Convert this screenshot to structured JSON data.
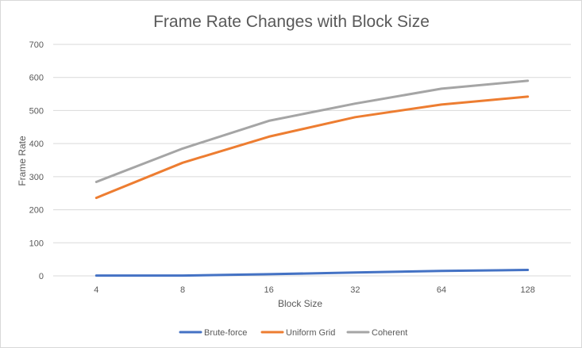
{
  "chart_data": {
    "type": "line",
    "title": "Frame Rate Changes with Block Size",
    "xlabel": "Block Size",
    "ylabel": "Frame Rate",
    "categories": [
      "4",
      "8",
      "16",
      "32",
      "64",
      "128"
    ],
    "ylim": [
      0,
      700
    ],
    "yticks": [
      "0",
      "100",
      "200",
      "300",
      "400",
      "500",
      "600",
      "700"
    ],
    "grid": true,
    "legend_position": "bottom",
    "series": [
      {
        "name": "Brute-force",
        "color": "#4472c4",
        "values": [
          1,
          1,
          5,
          10,
          15,
          18
        ]
      },
      {
        "name": "Uniform Grid",
        "color": "#ed7d31",
        "values": [
          236,
          342,
          421,
          480,
          518,
          542
        ]
      },
      {
        "name": "Coherent",
        "color": "#a5a5a5",
        "values": [
          284,
          385,
          469,
          521,
          566,
          590
        ]
      }
    ]
  }
}
